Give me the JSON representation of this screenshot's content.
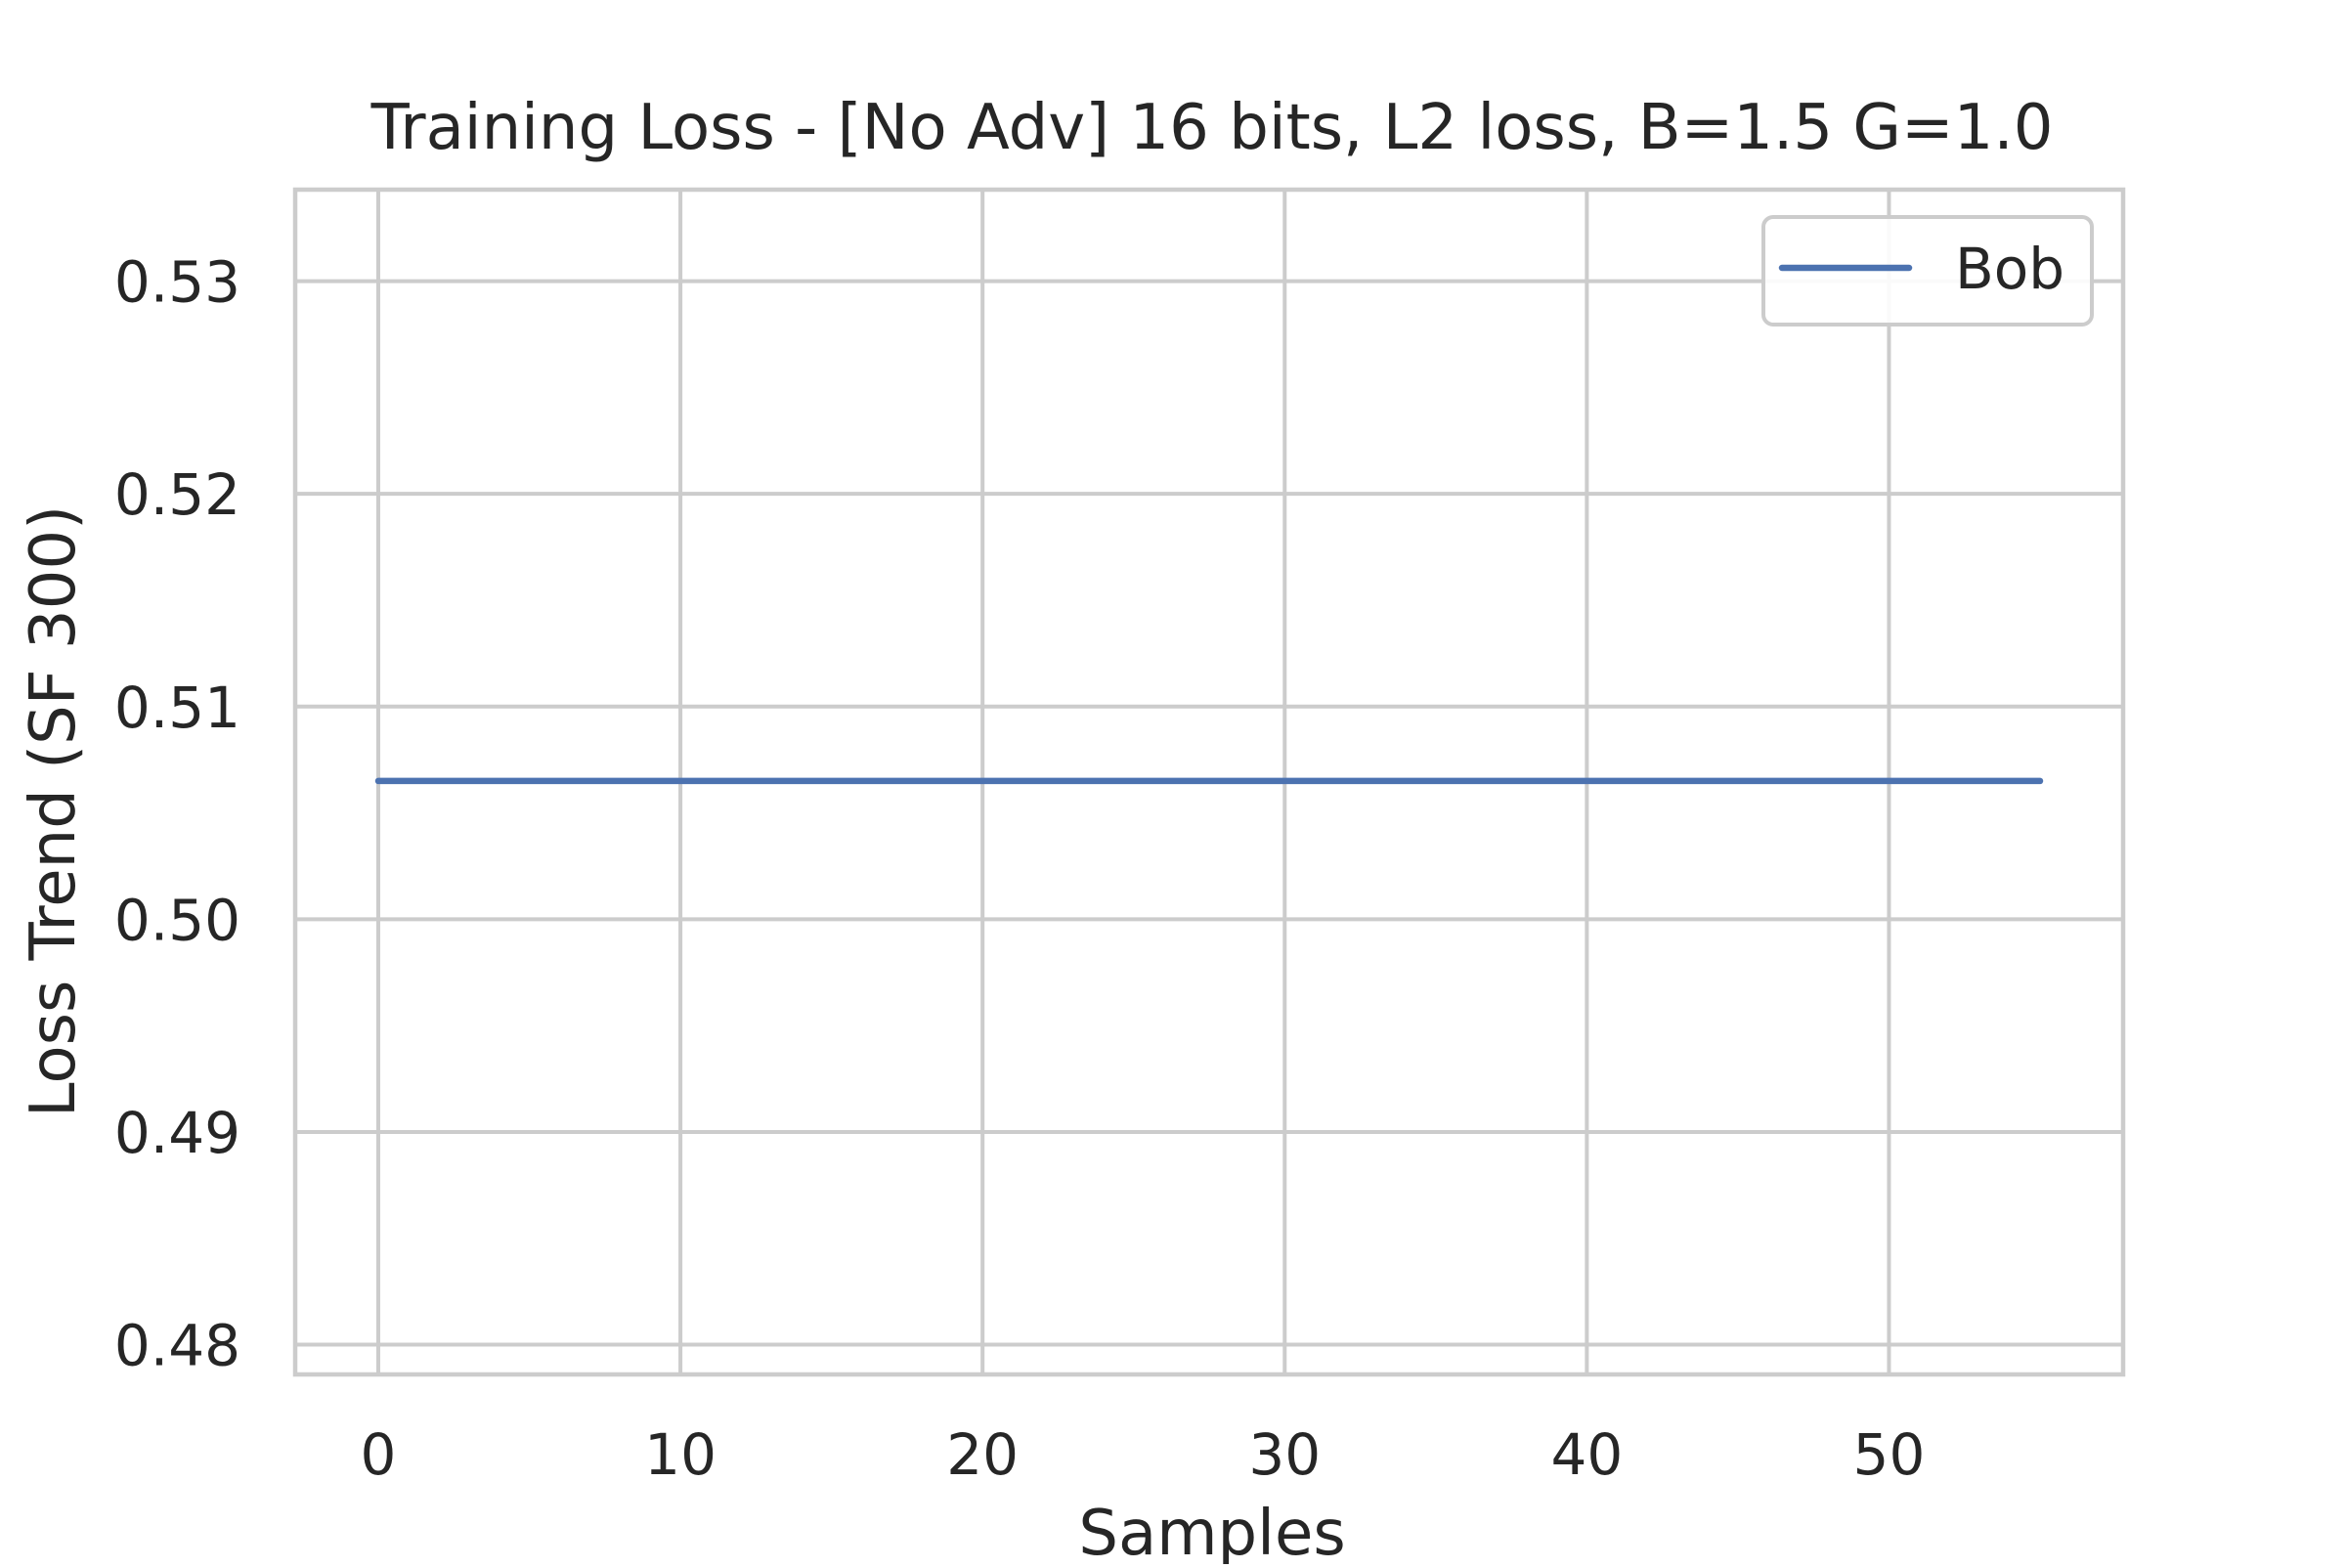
{
  "chart_data": {
    "type": "line",
    "title": "Training Loss - [No Adv] 16 bits, L2 loss, B=1.5 G=1.0",
    "xlabel": "Samples",
    "ylabel": "Loss Trend (SF 300)",
    "xlim": [
      -2.75,
      57.75
    ],
    "ylim": [
      0.4786,
      0.5343
    ],
    "xticks": [
      0,
      10,
      20,
      30,
      40,
      50
    ],
    "yticks": [
      0.48,
      0.49,
      0.5,
      0.51,
      0.52,
      0.53
    ],
    "ytick_labels": [
      "0.48",
      "0.49",
      "0.50",
      "0.51",
      "0.52",
      "0.53"
    ],
    "grid": true,
    "legend_position": "upper right",
    "series": [
      {
        "name": "Bob",
        "color": "#4c72b0",
        "x": [
          0,
          55
        ],
        "y": [
          0.5065,
          0.5065
        ]
      }
    ]
  }
}
